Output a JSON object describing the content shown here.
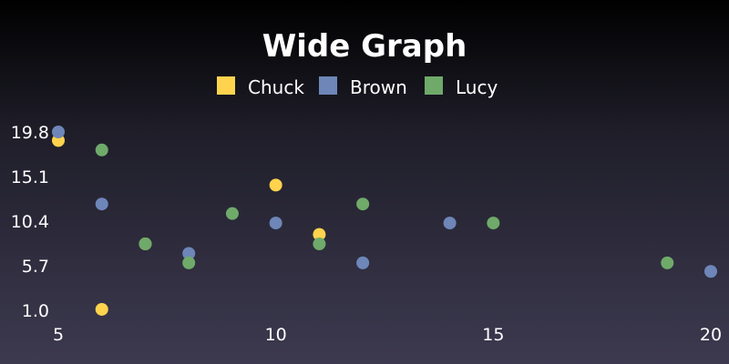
{
  "chart_data": {
    "type": "scatter",
    "title": "Wide Graph",
    "xlabel": "",
    "ylabel": "",
    "xlim": [
      5,
      20
    ],
    "ylim": [
      1.0,
      19.8
    ],
    "x_ticks": [
      "5",
      "10",
      "15",
      "20"
    ],
    "y_ticks": [
      "1.0",
      "5.7",
      "10.4",
      "15.1",
      "19.8"
    ],
    "grid": false,
    "legend_position": "top",
    "series": [
      {
        "name": "Chuck",
        "color": "#ffd34d",
        "points": [
          [
            5,
            18.9
          ],
          [
            6,
            1.1
          ],
          [
            7,
            8.0
          ],
          [
            10,
            14.2
          ],
          [
            11,
            9.0
          ]
        ]
      },
      {
        "name": "Brown",
        "color": "#6e86b8",
        "points": [
          [
            5,
            19.8
          ],
          [
            6,
            12.2
          ],
          [
            8,
            7.0
          ],
          [
            10,
            10.2
          ],
          [
            12,
            6.0
          ],
          [
            14,
            10.2
          ],
          [
            20,
            5.1
          ]
        ]
      },
      {
        "name": "Lucy",
        "color": "#6faa6a",
        "points": [
          [
            6,
            17.9
          ],
          [
            7,
            8.0
          ],
          [
            8,
            6.0
          ],
          [
            9,
            11.2
          ],
          [
            11,
            8.0
          ],
          [
            12,
            12.2
          ],
          [
            15,
            10.2
          ],
          [
            19,
            6.0
          ]
        ]
      }
    ]
  }
}
